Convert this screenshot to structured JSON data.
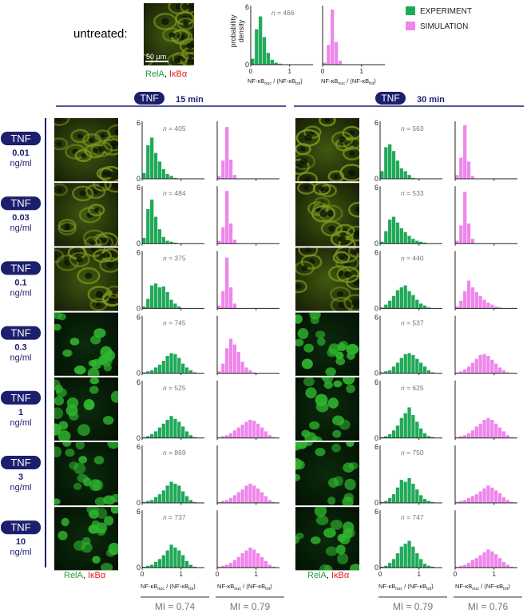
{
  "untreated_label": "untreated:",
  "scale_bar_label": "50 µm",
  "stain": {
    "rela": "RelA",
    "sep": ", ",
    "ikba": "IκBα"
  },
  "legend": {
    "experiment": "EXPERIMENT",
    "simulation": "SIMULATION"
  },
  "colors": {
    "experiment": "#21a95a",
    "simulation": "#ef86ec",
    "navy": "#1b1f6e",
    "rela": "#1e9e3a",
    "ikba": "#e0201d",
    "gray": "#777777"
  },
  "axes": {
    "ylabel_line1": "probability",
    "ylabel_line2": "density",
    "xlabel_main": "NF-κB",
    "xlabel_nuc": "nuc",
    "xlabel_mid": " / (NF-κB",
    "xlabel_tot": "tot",
    "xlabel_end": ")",
    "ymax_tick": "6",
    "ymin_tick": "0",
    "xticks": [
      "0",
      "1"
    ],
    "ylim": [
      0,
      6
    ],
    "xlim": [
      0,
      1.6
    ]
  },
  "treatment_label": "TNF",
  "unit": "ng/ml",
  "timepoints": [
    "15 min",
    "30 min"
  ],
  "mi": [
    {
      "experiment": "MI = 0.74",
      "simulation": "MI = 0.79"
    },
    {
      "experiment": "MI = 0.79",
      "simulation": "MI = 0.76"
    }
  ],
  "chart_data": {
    "type": "bar",
    "xlabel": "NF-κBnuc / (NF-κBtot)",
    "ylabel": "probability density",
    "bin_width": 0.1,
    "untreated": {
      "n": "n = 466",
      "experiment": [
        0.6,
        3.6,
        4.9,
        2.8,
        1.2,
        0.5,
        0.2,
        0.1
      ],
      "simulation": [
        0.2,
        2.0,
        5.6,
        2.3,
        0.4
      ]
    },
    "panels": [
      {
        "dose": "0.01",
        "t15": {
          "n": "n = 405",
          "experiment": [
            0.6,
            3.5,
            4.3,
            2.7,
            1.8,
            1.0,
            0.5,
            0.3,
            0.1
          ],
          "simulation": [
            0.3,
            1.9,
            5.4,
            2.0,
            0.4
          ]
        },
        "t30": {
          "n": "n = 563",
          "experiment": [
            0.8,
            3.3,
            3.6,
            2.9,
            1.9,
            1.1,
            0.8,
            0.4,
            0.1
          ],
          "simulation": [
            0.4,
            2.2,
            5.6,
            1.8,
            0.3
          ]
        }
      },
      {
        "dose": "0.03",
        "t15": {
          "n": "n = 484",
          "experiment": [
            0.6,
            3.6,
            4.6,
            2.8,
            1.5,
            0.7,
            0.3,
            0.2,
            0.1
          ],
          "simulation": [
            0.3,
            1.7,
            5.5,
            2.1,
            0.4
          ]
        },
        "t30": {
          "n": "n = 533",
          "experiment": [
            0.2,
            1.3,
            2.5,
            2.8,
            2.2,
            1.6,
            1.2,
            0.8,
            0.5,
            0.3,
            0.2,
            0.1
          ],
          "simulation": [
            0.3,
            1.9,
            5.4,
            2.1,
            0.5
          ]
        }
      },
      {
        "dose": "0.1",
        "t15": {
          "n": "n = 375",
          "experiment": [
            0.2,
            1.0,
            2.4,
            2.6,
            2.2,
            2.3,
            1.7,
            0.9,
            0.5,
            0.2
          ],
          "simulation": [
            0.3,
            1.8,
            5.3,
            2.2,
            0.5
          ]
        },
        "t30": {
          "n": "n = 440",
          "experiment": [
            0.1,
            0.4,
            0.8,
            1.3,
            1.9,
            2.2,
            2.4,
            1.8,
            1.4,
            0.9,
            0.5,
            0.3,
            0.1
          ],
          "simulation": [
            0.2,
            0.8,
            1.8,
            2.9,
            2.2,
            1.7,
            1.3,
            0.9,
            0.6,
            0.4,
            0.2,
            0.1
          ]
        }
      },
      {
        "dose": "0.3",
        "t15": {
          "n": "n = 745",
          "experiment": [
            0.1,
            0.2,
            0.3,
            0.6,
            0.9,
            1.3,
            1.8,
            2.1,
            2.0,
            1.6,
            1.0,
            0.6,
            0.3,
            0.1
          ],
          "simulation": [
            0.2,
            1.0,
            2.6,
            3.6,
            3.0,
            2.2,
            1.2,
            0.6,
            0.3,
            0.1
          ]
        },
        "t30": {
          "n": "n = 537",
          "experiment": [
            0.1,
            0.2,
            0.3,
            0.7,
            1.1,
            1.6,
            2.0,
            2.1,
            1.9,
            1.5,
            1.1,
            0.7,
            0.3,
            0.1
          ],
          "simulation": [
            0.1,
            0.2,
            0.4,
            0.7,
            1.1,
            1.5,
            1.9,
            2.0,
            1.8,
            1.4,
            1.0,
            0.6,
            0.3,
            0.1
          ]
        }
      },
      {
        "dose": "1",
        "t15": {
          "n": "n = 525",
          "experiment": [
            0.1,
            0.2,
            0.4,
            0.7,
            1.1,
            1.5,
            1.9,
            2.3,
            2.0,
            1.7,
            1.2,
            0.7,
            0.3,
            0.1
          ],
          "simulation": [
            0.1,
            0.2,
            0.3,
            0.5,
            0.8,
            1.1,
            1.4,
            1.7,
            1.9,
            1.8,
            1.5,
            1.1,
            0.7,
            0.3,
            0.1
          ]
        },
        "t30": {
          "n": "n = 625",
          "experiment": [
            0.1,
            0.2,
            0.4,
            0.8,
            1.3,
            2.1,
            2.6,
            3.2,
            2.4,
            1.7,
            1.0,
            0.5,
            0.2,
            0.1
          ],
          "simulation": [
            0.1,
            0.2,
            0.3,
            0.5,
            0.8,
            1.2,
            1.5,
            1.9,
            2.1,
            1.9,
            1.5,
            1.1,
            0.7,
            0.3,
            0.1
          ]
        }
      },
      {
        "dose": "3",
        "t15": {
          "n": "n = 869",
          "experiment": [
            0.1,
            0.2,
            0.3,
            0.6,
            0.9,
            1.3,
            1.8,
            2.2,
            2.0,
            1.8,
            1.2,
            0.7,
            0.3,
            0.1
          ],
          "simulation": [
            0.1,
            0.2,
            0.3,
            0.5,
            0.8,
            1.1,
            1.4,
            1.8,
            2.0,
            1.8,
            1.5,
            1.1,
            0.7,
            0.3,
            0.1
          ]
        },
        "t30": {
          "n": "n = 750",
          "experiment": [
            0.1,
            0.2,
            0.5,
            0.9,
            1.6,
            2.4,
            2.2,
            2.6,
            2.0,
            1.4,
            0.8,
            0.4,
            0.2,
            0.1
          ],
          "simulation": [
            0.1,
            0.2,
            0.3,
            0.5,
            0.7,
            0.9,
            1.2,
            1.5,
            1.8,
            1.6,
            1.3,
            1.0,
            0.6,
            0.3,
            0.1
          ]
        }
      },
      {
        "dose": "10",
        "t15": {
          "n": "n = 737",
          "experiment": [
            0.1,
            0.2,
            0.3,
            0.6,
            0.9,
            1.3,
            1.8,
            2.4,
            2.1,
            1.8,
            1.3,
            0.7,
            0.3,
            0.1
          ],
          "simulation": [
            0.1,
            0.2,
            0.3,
            0.5,
            0.8,
            1.1,
            1.5,
            1.8,
            2.1,
            1.9,
            1.5,
            1.1,
            0.7,
            0.3,
            0.1
          ]
        },
        "t30": {
          "n": "n = 747",
          "experiment": [
            0.1,
            0.2,
            0.5,
            0.9,
            1.5,
            2.2,
            2.5,
            2.8,
            2.2,
            1.5,
            0.9,
            0.4,
            0.2,
            0.1
          ],
          "simulation": [
            0.1,
            0.2,
            0.3,
            0.5,
            0.8,
            1.0,
            1.3,
            1.6,
            1.9,
            1.7,
            1.4,
            1.0,
            0.6,
            0.3,
            0.1
          ]
        }
      }
    ]
  }
}
